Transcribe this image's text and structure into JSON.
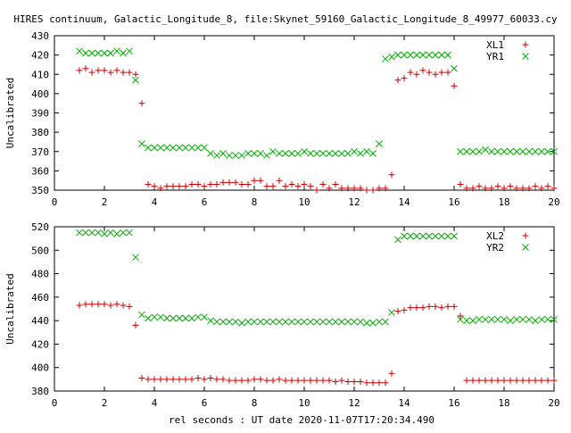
{
  "page_title": "HIRES continuum, Galactic_Longitude_8, file:Skynet_59160_Galactic_Longitude_8_49977_60033.cy",
  "xlabel": "rel seconds : UT date 2020-11-07T17:20:34.490",
  "colors": {
    "x_series": "#cc0000",
    "y_series": "#00aa00",
    "axis": "#000000"
  },
  "chart_data": [
    {
      "type": "scatter",
      "ylabel": "Uncalibrated",
      "xlim": [
        0,
        20
      ],
      "ylim": [
        350,
        430
      ],
      "xticks": [
        0,
        2,
        4,
        6,
        8,
        10,
        12,
        14,
        16,
        18,
        20
      ],
      "yticks": [
        350,
        360,
        370,
        380,
        390,
        400,
        410,
        420,
        430
      ],
      "grid": false,
      "legend": "top-right",
      "series": [
        {
          "name": "XL1",
          "marker": "plus",
          "x": [
            1.0,
            1.25,
            1.5,
            1.75,
            2.0,
            2.25,
            2.5,
            2.75,
            3.0,
            3.25,
            3.5,
            3.75,
            4.0,
            4.25,
            4.5,
            4.75,
            5.0,
            5.25,
            5.5,
            5.75,
            6.0,
            6.25,
            6.5,
            6.75,
            7.0,
            7.25,
            7.5,
            7.75,
            8.0,
            8.25,
            8.5,
            8.75,
            9.0,
            9.25,
            9.5,
            9.75,
            10.0,
            10.25,
            10.5,
            10.75,
            11.0,
            11.25,
            11.5,
            11.75,
            12.0,
            12.25,
            12.5,
            12.75,
            13.0,
            13.25,
            13.5,
            13.75,
            14.0,
            14.25,
            14.5,
            14.75,
            15.0,
            15.25,
            15.5,
            15.75,
            16.0,
            16.25,
            16.5,
            16.75,
            17.0,
            17.25,
            17.5,
            17.75,
            18.0,
            18.25,
            18.5,
            18.75,
            19.0,
            19.25,
            19.5,
            19.75,
            20.0
          ],
          "y": [
            412,
            413,
            411,
            412,
            412,
            411,
            412,
            411,
            411,
            410,
            395,
            353,
            352,
            351,
            352,
            352,
            352,
            352,
            353,
            353,
            352,
            353,
            353,
            354,
            354,
            354,
            353,
            353,
            355,
            355,
            352,
            352,
            355,
            352,
            353,
            352,
            353,
            352,
            350,
            353,
            351,
            353,
            351,
            351,
            351,
            351,
            350,
            350,
            351,
            351,
            358,
            407,
            408,
            411,
            410,
            412,
            411,
            410,
            411,
            411,
            404,
            353,
            351,
            351,
            352,
            351,
            351,
            352,
            351,
            352,
            351,
            351,
            351,
            352,
            351,
            352,
            351
          ],
          "x_note_indices_ignored": ""
        },
        {
          "name": "YR1",
          "marker": "cross",
          "x": [
            1.0,
            1.25,
            1.5,
            1.75,
            2.0,
            2.25,
            2.5,
            2.75,
            3.0,
            3.25,
            3.5,
            3.75,
            4.0,
            4.25,
            4.5,
            4.75,
            5.0,
            5.25,
            5.5,
            5.75,
            6.0,
            6.25,
            6.5,
            6.75,
            7.0,
            7.25,
            7.5,
            7.75,
            8.0,
            8.25,
            8.5,
            8.75,
            9.0,
            9.25,
            9.5,
            9.75,
            10.0,
            10.25,
            10.5,
            10.75,
            11.0,
            11.25,
            11.5,
            11.75,
            12.0,
            12.25,
            12.5,
            12.75,
            13.0,
            13.25,
            13.5,
            13.75,
            14.0,
            14.25,
            14.5,
            14.75,
            15.0,
            15.25,
            15.5,
            15.75,
            16.0,
            16.25,
            16.5,
            16.75,
            17.0,
            17.25,
            17.5,
            17.75,
            18.0,
            18.25,
            18.5,
            18.75,
            19.0,
            19.25,
            19.5,
            19.75,
            20.0
          ],
          "y": [
            422,
            421,
            421,
            421,
            421,
            421,
            422,
            421,
            422,
            407,
            374,
            372,
            372,
            372,
            372,
            372,
            372,
            372,
            372,
            372,
            372,
            369,
            368,
            369,
            368,
            368,
            368,
            369,
            369,
            369,
            368,
            370,
            369,
            369,
            369,
            369,
            370,
            369,
            369,
            369,
            369,
            369,
            369,
            369,
            370,
            369,
            370,
            369,
            374,
            418,
            419,
            420,
            420,
            420,
            420,
            420,
            420,
            420,
            420,
            420,
            413,
            370,
            370,
            370,
            370,
            371,
            370,
            370,
            370,
            370,
            370,
            370,
            370,
            370,
            370,
            370,
            370
          ]
        }
      ]
    },
    {
      "type": "scatter",
      "ylabel": "Uncalibrated",
      "xlim": [
        0,
        20
      ],
      "ylim": [
        380,
        520
      ],
      "xticks": [
        0,
        2,
        4,
        6,
        8,
        10,
        12,
        14,
        16,
        18,
        20
      ],
      "yticks": [
        380,
        400,
        420,
        440,
        460,
        480,
        500,
        520
      ],
      "grid": false,
      "legend": "top-right",
      "series": [
        {
          "name": "XL2",
          "marker": "plus",
          "x": [
            1.0,
            1.25,
            1.5,
            1.75,
            2.0,
            2.25,
            2.5,
            2.75,
            3.0,
            3.25,
            3.5,
            3.75,
            4.0,
            4.25,
            4.5,
            4.75,
            5.0,
            5.25,
            5.5,
            5.75,
            6.0,
            6.25,
            6.5,
            6.75,
            7.0,
            7.25,
            7.5,
            7.75,
            8.0,
            8.25,
            8.5,
            8.75,
            9.0,
            9.25,
            9.5,
            9.75,
            10.0,
            10.25,
            10.5,
            10.75,
            11.0,
            11.25,
            11.5,
            11.75,
            12.0,
            12.25,
            12.5,
            12.75,
            13.0,
            13.25,
            13.5,
            13.75,
            14.0,
            14.25,
            14.5,
            14.75,
            15.0,
            15.25,
            15.5,
            15.75,
            16.0,
            16.25,
            16.5,
            16.75,
            17.0,
            17.25,
            17.5,
            17.75,
            18.0,
            18.25,
            18.5,
            18.75,
            19.0,
            19.25,
            19.5,
            19.75,
            20.0
          ],
          "y": [
            453,
            454,
            454,
            454,
            454,
            453,
            454,
            453,
            452,
            436,
            391,
            390,
            390,
            390,
            390,
            390,
            390,
            390,
            390,
            391,
            390,
            391,
            390,
            390,
            389,
            389,
            389,
            389,
            390,
            390,
            389,
            389,
            390,
            389,
            389,
            389,
            389,
            389,
            389,
            389,
            389,
            388,
            389,
            388,
            388,
            388,
            387,
            387,
            387,
            387,
            395,
            448,
            449,
            451,
            451,
            451,
            452,
            452,
            451,
            452,
            452,
            444,
            389,
            389,
            389,
            389,
            389,
            389,
            389,
            389,
            389,
            389,
            389,
            389,
            389,
            389,
            389
          ]
        },
        {
          "name": "YR2",
          "marker": "cross",
          "x": [
            1.0,
            1.25,
            1.5,
            1.75,
            2.0,
            2.25,
            2.5,
            2.75,
            3.0,
            3.25,
            3.5,
            3.75,
            4.0,
            4.25,
            4.5,
            4.75,
            5.0,
            5.25,
            5.5,
            5.75,
            6.0,
            6.25,
            6.5,
            6.75,
            7.0,
            7.25,
            7.5,
            7.75,
            8.0,
            8.25,
            8.5,
            8.75,
            9.0,
            9.25,
            9.5,
            9.75,
            10.0,
            10.25,
            10.5,
            10.75,
            11.0,
            11.25,
            11.5,
            11.75,
            12.0,
            12.25,
            12.5,
            12.75,
            13.0,
            13.25,
            13.5,
            13.75,
            14.0,
            14.25,
            14.5,
            14.75,
            15.0,
            15.25,
            15.5,
            15.75,
            16.0,
            16.25,
            16.5,
            16.75,
            17.0,
            17.25,
            17.5,
            17.75,
            18.0,
            18.25,
            18.5,
            18.75,
            19.0,
            19.25,
            19.5,
            19.75,
            20.0
          ],
          "y": [
            515,
            515,
            515,
            515,
            514,
            515,
            514,
            515,
            515,
            494,
            445,
            442,
            443,
            443,
            442,
            442,
            442,
            442,
            442,
            443,
            443,
            440,
            439,
            439,
            439,
            439,
            438,
            439,
            439,
            439,
            439,
            439,
            439,
            439,
            439,
            439,
            439,
            439,
            439,
            439,
            439,
            439,
            439,
            439,
            439,
            439,
            438,
            438,
            439,
            439,
            447,
            509,
            512,
            512,
            512,
            512,
            512,
            512,
            512,
            512,
            512,
            441,
            440,
            440,
            441,
            441,
            441,
            441,
            441,
            440,
            441,
            441,
            441,
            440,
            441,
            441,
            441
          ]
        }
      ]
    }
  ]
}
